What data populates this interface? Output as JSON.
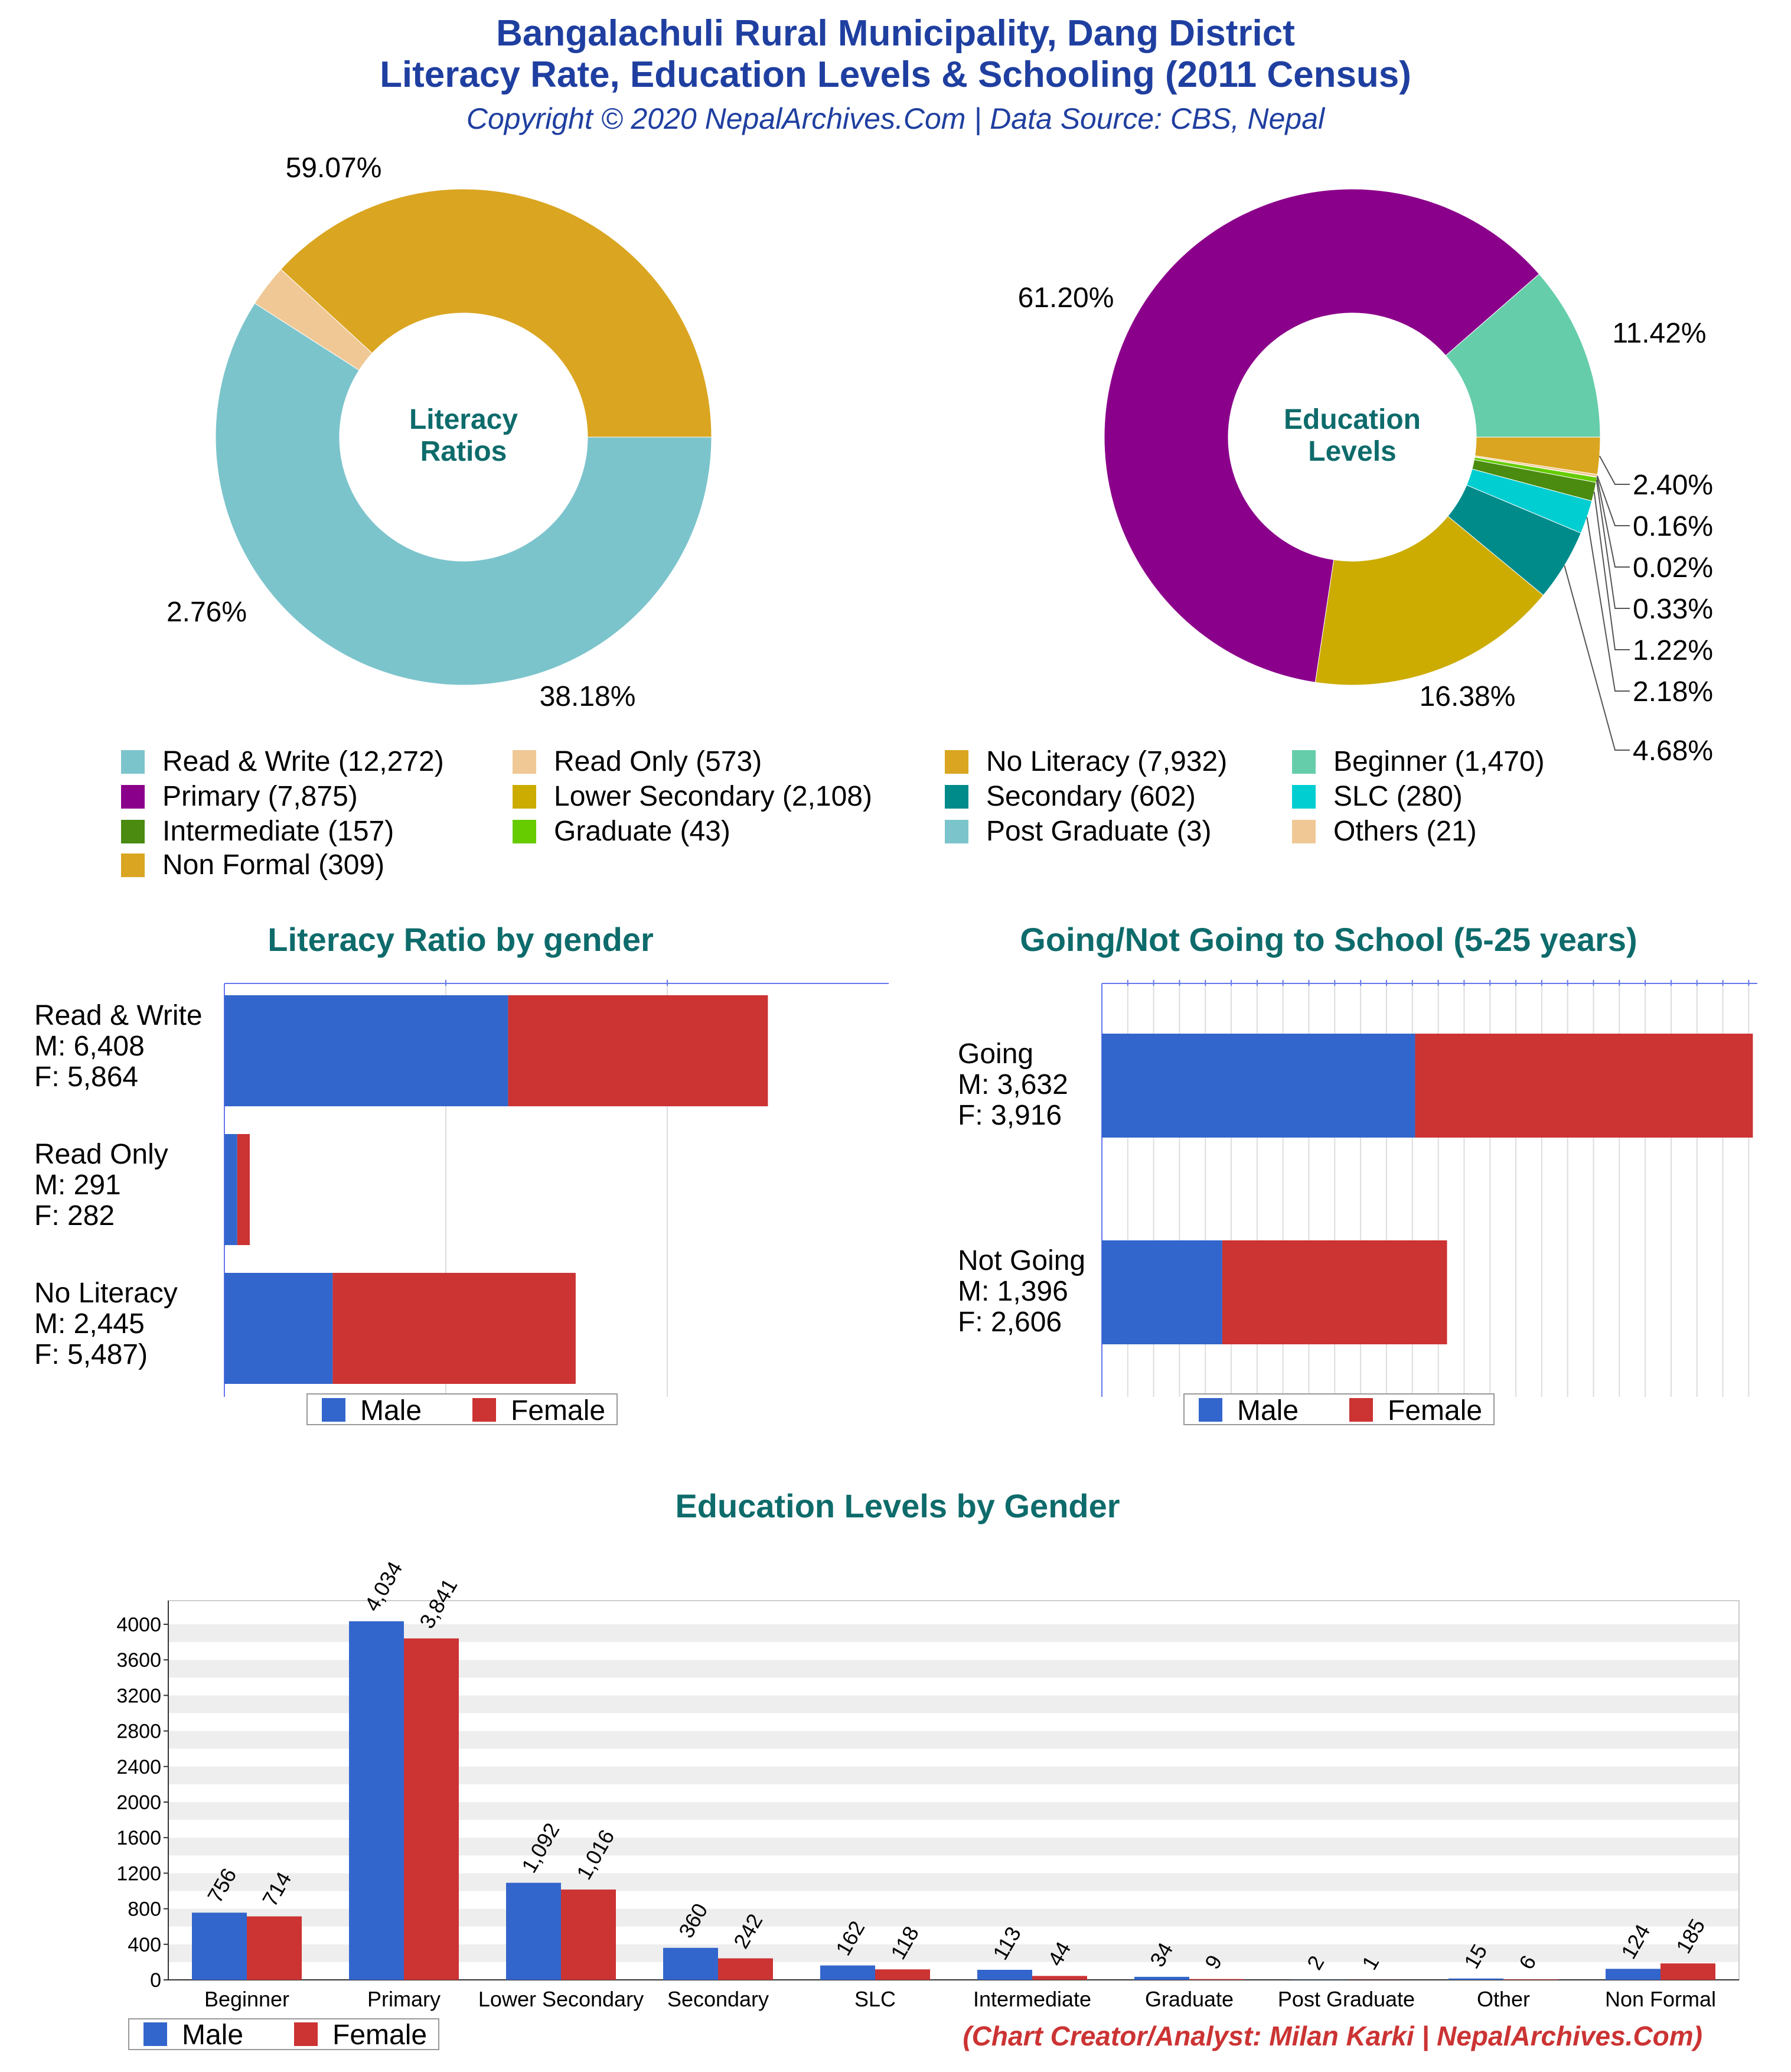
{
  "header": {
    "title_line1": "Bangalachuli Rural Municipality, Dang District",
    "title_line2": "Literacy Rate, Education Levels & Schooling (2011 Census)",
    "subtitle": "Copyright © 2020 NepalArchives.Com | Data Source: CBS, Nepal"
  },
  "legend_items": [
    {
      "label": "Read & Write (12,272)",
      "color": "#7cc4cc"
    },
    {
      "label": "Read Only (573)",
      "color": "#f0c896"
    },
    {
      "label": "No Literacy (7,932)",
      "color": "#daa520"
    },
    {
      "label": "Beginner (1,470)",
      "color": "#66cdaa"
    },
    {
      "label": "Primary (7,875)",
      "color": "#8b008b"
    },
    {
      "label": "Lower Secondary (2,108)",
      "color": "#ccac00"
    },
    {
      "label": "Secondary (602)",
      "color": "#008b8b"
    },
    {
      "label": "SLC (280)",
      "color": "#00ced1"
    },
    {
      "label": "Intermediate (157)",
      "color": "#4a8b10"
    },
    {
      "label": "Graduate (43)",
      "color": "#66cc00"
    },
    {
      "label": "Post Graduate (3)",
      "color": "#7cc4cc"
    },
    {
      "label": "Others (21)",
      "color": "#f0c896"
    },
    {
      "label": "Non Formal (309)",
      "color": "#daa520"
    }
  ],
  "chart_data": [
    {
      "type": "pie",
      "center_label": "Literacy\nRatios",
      "slices": [
        {
          "name": "Read & Write",
          "value": 12272,
          "pct_label": "59.07%",
          "color": "#7cc4cc"
        },
        {
          "name": "Read Only",
          "value": 573,
          "pct_label": "2.76%",
          "color": "#f0c896"
        },
        {
          "name": "No Literacy",
          "value": 7932,
          "pct_label": "38.18%",
          "color": "#daa520"
        }
      ]
    },
    {
      "type": "pie",
      "center_label": "Education\nLevels",
      "slices": [
        {
          "name": "Beginner",
          "value": 1470,
          "pct_label": "11.42%",
          "color": "#66cdaa"
        },
        {
          "name": "Non Formal",
          "value": 309,
          "pct_label": "2.40%",
          "color": "#daa520"
        },
        {
          "name": "Others",
          "value": 21,
          "pct_label": "0.16%",
          "color": "#f0c896"
        },
        {
          "name": "Post Graduate",
          "value": 3,
          "pct_label": "0.02%",
          "color": "#7cc4cc"
        },
        {
          "name": "Graduate",
          "value": 43,
          "pct_label": "0.33%",
          "color": "#66cc00"
        },
        {
          "name": "Intermediate",
          "value": 157,
          "pct_label": "1.22%",
          "color": "#4a8b10"
        },
        {
          "name": "SLC",
          "value": 280,
          "pct_label": "2.18%",
          "color": "#00ced1"
        },
        {
          "name": "Secondary",
          "value": 602,
          "pct_label": "4.68%",
          "color": "#008b8b"
        },
        {
          "name": "Lower Secondary",
          "value": 2108,
          "pct_label": "16.38%",
          "color": "#ccac00"
        },
        {
          "name": "Primary",
          "value": 7875,
          "pct_label": "61.20%",
          "color": "#8b008b"
        }
      ]
    },
    {
      "type": "bar",
      "orientation": "horizontal",
      "stacked": true,
      "title": "Literacy Ratio by gender",
      "categories": [
        "Read & Write",
        "Read Only",
        "No Literacy"
      ],
      "category_labels": [
        [
          "Read & Write",
          "M: 6,408",
          "F: 5,864"
        ],
        [
          "Read Only",
          "M: 291",
          "F: 282"
        ],
        [
          "No Literacy",
          "M: 2,445",
          "F: 5,487)"
        ]
      ],
      "series": [
        {
          "name": "Male",
          "values": [
            6408,
            291,
            2445
          ],
          "color": "#3366cc"
        },
        {
          "name": "Female",
          "values": [
            5864,
            282,
            5487
          ],
          "color": "#cc3333"
        }
      ],
      "xlim": [
        0,
        15000
      ],
      "legend_position": "bottom"
    },
    {
      "type": "bar",
      "orientation": "horizontal",
      "stacked": true,
      "title": "Going/Not Going to School (5-25 years)",
      "categories": [
        "Going",
        "Not Going"
      ],
      "category_labels": [
        [
          "Going",
          "M: 3,632",
          "F: 3,916"
        ],
        [
          "Not Going",
          "M: 1,396",
          "F: 2,606"
        ]
      ],
      "series": [
        {
          "name": "Male",
          "values": [
            3632,
            1396
          ],
          "color": "#3366cc"
        },
        {
          "name": "Female",
          "values": [
            3916,
            2606
          ],
          "color": "#cc3333"
        }
      ],
      "xlim": [
        0,
        7600
      ],
      "legend_position": "bottom"
    },
    {
      "type": "bar",
      "title": "Education Levels by Gender",
      "categories": [
        "Beginner",
        "Primary",
        "Lower Secondary",
        "Secondary",
        "SLC",
        "Intermediate",
        "Graduate",
        "Post Graduate",
        "Other",
        "Non Formal"
      ],
      "series": [
        {
          "name": "Male",
          "values": [
            756,
            4034,
            1092,
            360,
            162,
            113,
            34,
            2,
            15,
            124
          ],
          "labels": [
            "756",
            "4,034",
            "1,092",
            "360",
            "162",
            "113",
            "34",
            "2",
            "15",
            "124"
          ],
          "color": "#3366cc"
        },
        {
          "name": "Female",
          "values": [
            714,
            3841,
            1016,
            242,
            118,
            44,
            9,
            1,
            6,
            185
          ],
          "labels": [
            "714",
            "3,841",
            "1,016",
            "242",
            "118",
            "44",
            "9",
            "1",
            "6",
            "185"
          ],
          "color": "#cc3333"
        }
      ],
      "yticks": [
        0,
        400,
        800,
        1200,
        1600,
        2000,
        2400,
        2800,
        3200,
        3600,
        4000
      ],
      "ylim": [
        0,
        4300
      ],
      "legend_position": "bottom-left"
    }
  ],
  "credit": "(Chart Creator/Analyst: Milan Karki | NepalArchives.Com)"
}
